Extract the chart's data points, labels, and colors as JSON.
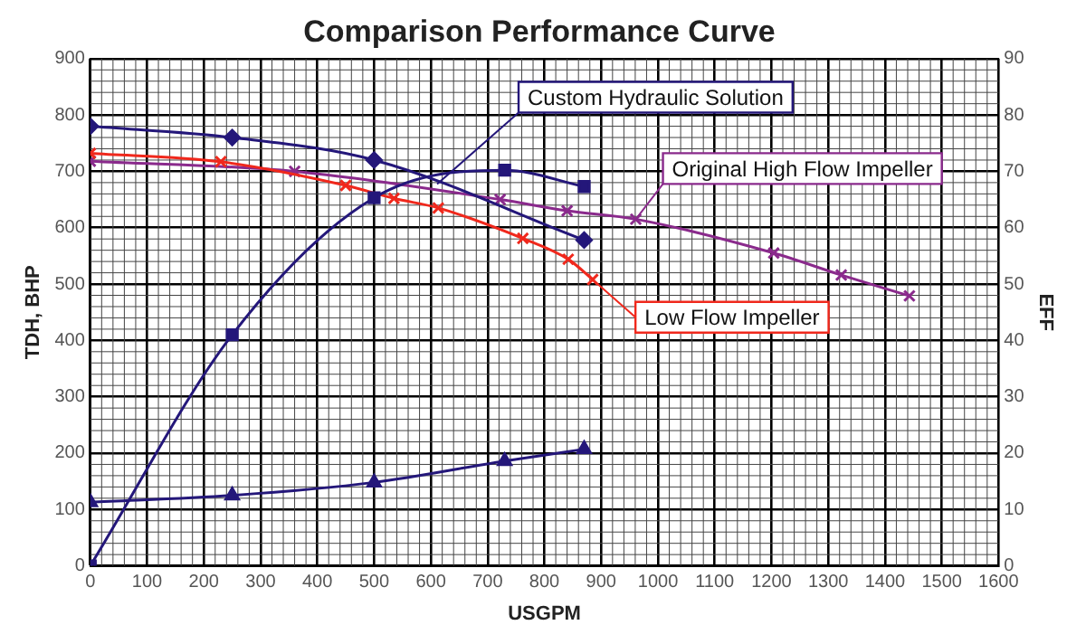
{
  "chart_data": {
    "type": "line",
    "title": "Comparison Performance Curve",
    "xlabel": "USGPM",
    "ylabel": "TDH, BHP",
    "y2label": "EFF",
    "xlim": [
      0,
      1600
    ],
    "xticks": [
      0,
      100,
      200,
      300,
      400,
      500,
      600,
      700,
      800,
      900,
      1000,
      1100,
      1200,
      1300,
      1400,
      1500,
      1600
    ],
    "ylim": [
      0,
      900
    ],
    "yticks": [
      0,
      100,
      200,
      300,
      400,
      500,
      600,
      700,
      800,
      900
    ],
    "y2lim": [
      0,
      90
    ],
    "y2ticks": [
      0,
      10,
      20,
      30,
      40,
      50,
      60,
      70,
      80,
      90
    ],
    "grid": true,
    "legend": false,
    "series": [
      {
        "name": "Custom Hydraulic Solution",
        "color": "#24177a",
        "marker": "diamond",
        "x": [
          0,
          250,
          500,
          870
        ],
        "values": [
          780,
          760,
          720,
          578
        ]
      },
      {
        "color": "#24177a",
        "marker": "square",
        "axis": "y2",
        "x": [
          0,
          250,
          500,
          730,
          870
        ],
        "values": [
          0,
          41,
          65.3,
          70.2,
          67.3
        ]
      },
      {
        "color": "#24177a",
        "marker": "triangle",
        "x": [
          0,
          250,
          500,
          730,
          870
        ],
        "values": [
          113,
          125,
          148,
          186,
          207
        ]
      },
      {
        "name": "Low Flow Impeller",
        "color": "#f0281c",
        "marker": "cross",
        "x": [
          0,
          230,
          450,
          535,
          613,
          762,
          842,
          885
        ],
        "values": [
          732,
          717,
          675,
          652,
          635,
          581,
          544,
          508
        ]
      },
      {
        "name": "Original High Flow Impeller",
        "color": "#8a2a8c",
        "marker": "cross",
        "x": [
          0,
          360,
          722,
          840,
          961,
          1204,
          1323,
          1443
        ],
        "values": [
          718,
          700,
          650,
          630,
          615,
          555,
          516,
          479
        ]
      }
    ]
  }
}
